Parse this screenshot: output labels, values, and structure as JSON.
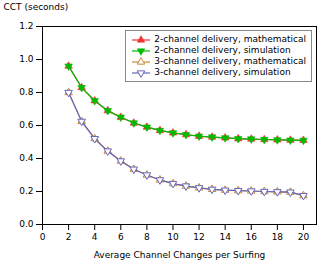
{
  "chart_data": {
    "type": "line",
    "xlabel": "Average Channel Changes per Surfing",
    "ylabel": "CCT (seconds)",
    "x": [
      2,
      3,
      4,
      5,
      6,
      7,
      8,
      9,
      10,
      11,
      12,
      13,
      14,
      15,
      16,
      17,
      18,
      19,
      20
    ],
    "series": [
      {
        "name": "2-channel delivery, mathematical",
        "color": "#ee3333",
        "marker": "triangle-up",
        "values": [
          0.96,
          0.83,
          0.75,
          0.69,
          0.65,
          0.615,
          0.59,
          0.57,
          0.555,
          0.545,
          0.535,
          0.53,
          0.525,
          0.52,
          0.518,
          0.515,
          0.513,
          0.511,
          0.51
        ]
      },
      {
        "name": "2-channel delivery, simulation",
        "color": "#00bb00",
        "marker": "triangle-down",
        "values": [
          0.96,
          0.83,
          0.75,
          0.69,
          0.65,
          0.615,
          0.59,
          0.57,
          0.555,
          0.545,
          0.535,
          0.53,
          0.525,
          0.52,
          0.518,
          0.515,
          0.513,
          0.511,
          0.51
        ]
      },
      {
        "name": "3-channel delivery, mathematical",
        "color": "#cc8833",
        "marker": "triangle-up-open",
        "values": [
          0.8,
          0.625,
          0.52,
          0.445,
          0.385,
          0.335,
          0.3,
          0.27,
          0.248,
          0.233,
          0.222,
          0.213,
          0.208,
          0.205,
          0.203,
          0.2,
          0.198,
          0.196,
          0.175
        ]
      },
      {
        "name": "3-channel delivery, simulation",
        "color": "#6666bb",
        "marker": "triangle-down-open",
        "values": [
          0.8,
          0.625,
          0.52,
          0.445,
          0.385,
          0.335,
          0.3,
          0.27,
          0.248,
          0.233,
          0.222,
          0.213,
          0.208,
          0.205,
          0.203,
          0.2,
          0.198,
          0.196,
          0.175
        ]
      }
    ],
    "xlim": [
      0,
      21
    ],
    "ylim": [
      0.0,
      1.2
    ],
    "xticks": [
      0,
      2,
      4,
      6,
      8,
      10,
      12,
      14,
      16,
      18,
      20
    ],
    "yticks": [
      {
        "value": 0.0,
        "label": "0.0"
      },
      0.2,
      0.4,
      0.6,
      0.8,
      {
        "value": 1.0,
        "label": "1.0"
      },
      1.2
    ],
    "grid": false,
    "legend": "top-right"
  }
}
